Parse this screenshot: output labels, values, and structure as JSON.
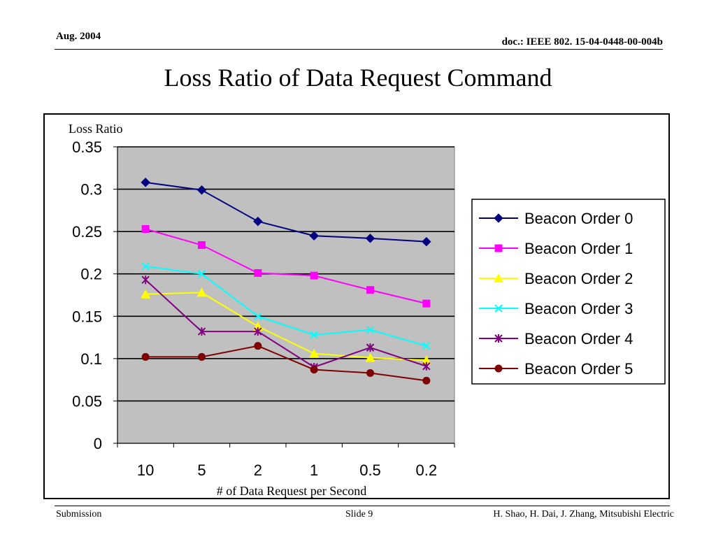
{
  "header": {
    "date": "Aug. 2004",
    "doc_id": "doc.: IEEE 802. 15-04-0448-00-004b"
  },
  "slide_title": "Loss Ratio of Data Request Command",
  "footer": {
    "left": "Submission",
    "center": "Slide 9",
    "right": "H. Shao, H. Dai, J. Zhang, Mitsubishi Electric"
  },
  "chart_data": {
    "type": "line",
    "title": "",
    "ylabel": "Loss Ratio",
    "xlabel": "# of Data Request per Second",
    "categories": [
      "10",
      "5",
      "2",
      "1",
      "0.5",
      "0.2"
    ],
    "ylim": [
      0,
      0.35
    ],
    "yticks": [
      "0",
      "0.05",
      "0.1",
      "0.15",
      "0.2",
      "0.25",
      "0.3",
      "0.35"
    ],
    "grid": true,
    "legend_position": "right",
    "plot_background": "#c0c0c0",
    "series": [
      {
        "name": "Beacon Order 0",
        "color": "#000080",
        "marker": "diamond",
        "values": [
          0.308,
          0.299,
          0.262,
          0.245,
          0.242,
          0.238
        ]
      },
      {
        "name": "Beacon Order 1",
        "color": "#ff00ff",
        "marker": "square",
        "values": [
          0.253,
          0.234,
          0.201,
          0.198,
          0.181,
          0.165
        ]
      },
      {
        "name": "Beacon Order 2",
        "color": "#ffff00",
        "marker": "triangle",
        "values": [
          0.176,
          0.178,
          0.138,
          0.106,
          0.101,
          0.098
        ]
      },
      {
        "name": "Beacon Order 3",
        "color": "#00ffff",
        "marker": "x",
        "values": [
          0.209,
          0.2,
          0.15,
          0.128,
          0.134,
          0.115
        ]
      },
      {
        "name": "Beacon Order 4",
        "color": "#800080",
        "marker": "asterisk",
        "values": [
          0.193,
          0.132,
          0.132,
          0.09,
          0.113,
          0.091
        ]
      },
      {
        "name": "Beacon Order 5",
        "color": "#800000",
        "marker": "circle",
        "values": [
          0.102,
          0.102,
          0.115,
          0.087,
          0.083,
          0.074
        ]
      }
    ]
  }
}
